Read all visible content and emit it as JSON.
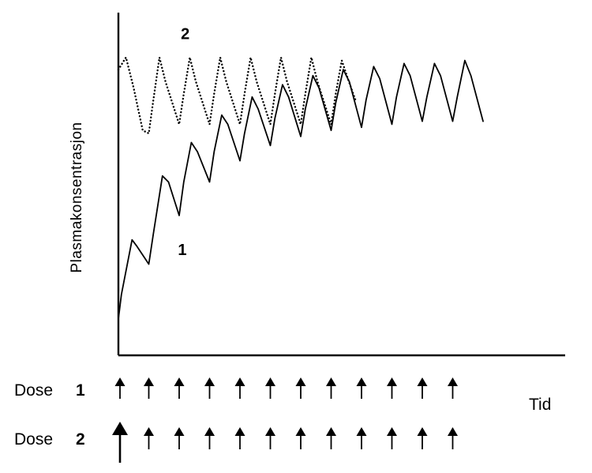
{
  "chart_data": {
    "type": "line",
    "title": "",
    "ylabel": "Plasmakonsentrasjon",
    "xlabel": "Tid",
    "grid": false,
    "xlim": [
      0,
      13.5
    ],
    "ylim": [
      0,
      100
    ],
    "series": [
      {
        "name": "1",
        "style": "solid",
        "points": [
          [
            0.0,
            12
          ],
          [
            0.1,
            20
          ],
          [
            0.45,
            38
          ],
          [
            0.6,
            36
          ],
          [
            1.0,
            30
          ],
          [
            1.15,
            40
          ],
          [
            1.45,
            59
          ],
          [
            1.65,
            57
          ],
          [
            2.0,
            46
          ],
          [
            2.15,
            57
          ],
          [
            2.4,
            70
          ],
          [
            2.6,
            67
          ],
          [
            3.0,
            57
          ],
          [
            3.15,
            67
          ],
          [
            3.4,
            79
          ],
          [
            3.6,
            76
          ],
          [
            4.0,
            64
          ],
          [
            4.15,
            73
          ],
          [
            4.4,
            85
          ],
          [
            4.6,
            81
          ],
          [
            5.0,
            69
          ],
          [
            5.15,
            78
          ],
          [
            5.4,
            89
          ],
          [
            5.6,
            85
          ],
          [
            6.0,
            72
          ],
          [
            6.15,
            81
          ],
          [
            6.4,
            92
          ],
          [
            6.6,
            88
          ],
          [
            7.0,
            74
          ],
          [
            7.15,
            83
          ],
          [
            7.4,
            94
          ],
          [
            7.6,
            90
          ],
          [
            8.0,
            75
          ],
          [
            8.15,
            84
          ],
          [
            8.4,
            95
          ],
          [
            8.6,
            91
          ],
          [
            9.0,
            76
          ],
          [
            9.15,
            85
          ],
          [
            9.4,
            96
          ],
          [
            9.6,
            92
          ],
          [
            10.0,
            77
          ],
          [
            10.15,
            85
          ],
          [
            10.4,
            96
          ],
          [
            10.6,
            92
          ],
          [
            11.0,
            77
          ],
          [
            11.15,
            85
          ],
          [
            11.4,
            97
          ],
          [
            11.6,
            92
          ],
          [
            12.0,
            77
          ]
        ]
      },
      {
        "name": "2",
        "style": "dotted",
        "points": [
          [
            0.0,
            94
          ],
          [
            0.25,
            98
          ],
          [
            0.5,
            88
          ],
          [
            0.8,
            74
          ],
          [
            1.0,
            73
          ],
          [
            1.15,
            84
          ],
          [
            1.35,
            98
          ],
          [
            1.55,
            90
          ],
          [
            2.0,
            76
          ],
          [
            2.15,
            86
          ],
          [
            2.35,
            98
          ],
          [
            2.55,
            90
          ],
          [
            3.0,
            76
          ],
          [
            3.15,
            86
          ],
          [
            3.35,
            98
          ],
          [
            3.55,
            90
          ],
          [
            4.0,
            76
          ],
          [
            4.15,
            86
          ],
          [
            4.35,
            98
          ],
          [
            4.55,
            90
          ],
          [
            5.0,
            76
          ],
          [
            5.15,
            86
          ],
          [
            5.35,
            98
          ],
          [
            5.55,
            90
          ],
          [
            6.0,
            76
          ],
          [
            6.15,
            86
          ],
          [
            6.35,
            98
          ],
          [
            6.55,
            90
          ],
          [
            7.0,
            76
          ],
          [
            7.15,
            86
          ],
          [
            7.35,
            97
          ],
          [
            7.55,
            91
          ],
          [
            7.8,
            84
          ]
        ]
      }
    ],
    "series_labels": [
      {
        "text": "1",
        "x": 2.1,
        "y": 33
      },
      {
        "text": "2",
        "x": 2.2,
        "y": 104
      }
    ],
    "doses": [
      {
        "label": "Dose",
        "number": "1",
        "times": [
          0,
          1,
          2,
          3,
          4,
          5,
          6,
          7,
          8,
          9,
          10,
          11
        ],
        "first_large": false
      },
      {
        "label": "Dose",
        "number": "2",
        "times": [
          0,
          1,
          2,
          3,
          4,
          5,
          6,
          7,
          8,
          9,
          10,
          11
        ],
        "first_large": true
      }
    ],
    "colors": {
      "line": "#000000",
      "axis": "#000000"
    }
  }
}
